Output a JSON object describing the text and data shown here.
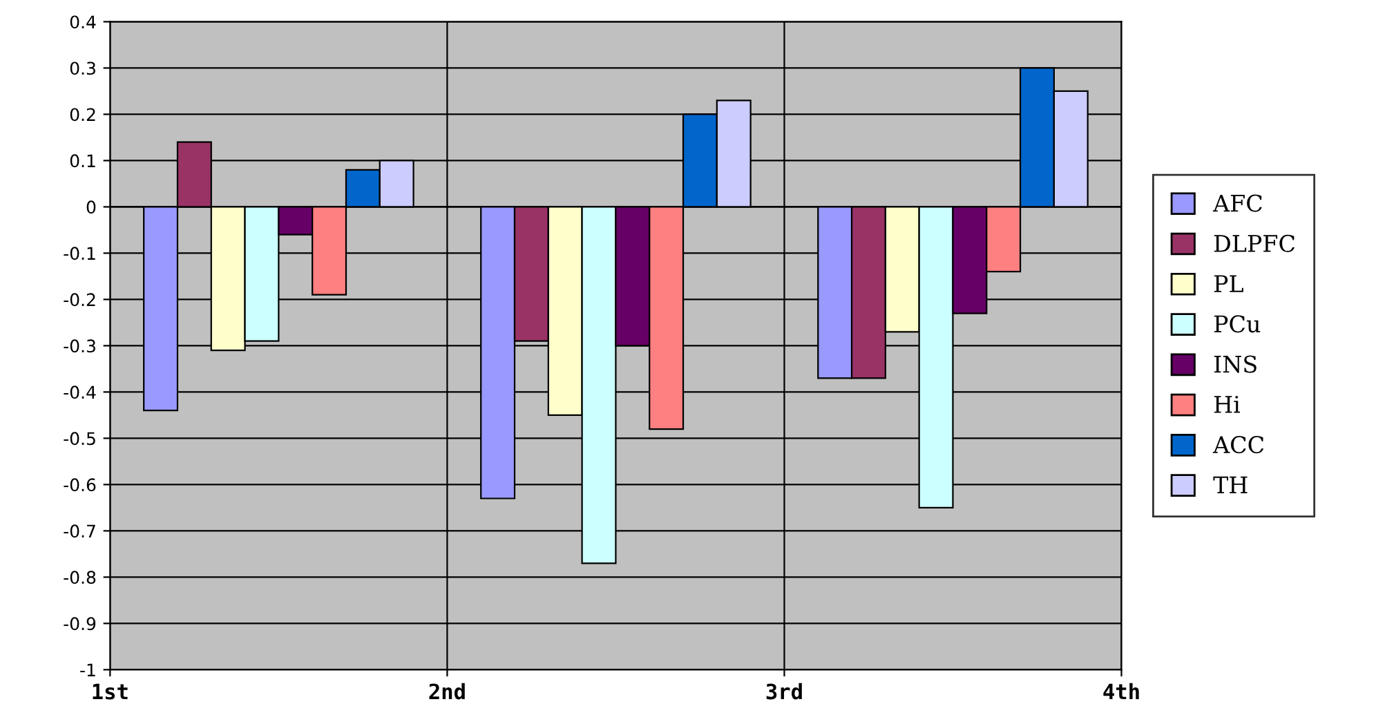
{
  "chart_data": {
    "type": "bar",
    "x": [
      1.5,
      2.5,
      3.5
    ],
    "xlim": [
      1,
      4
    ],
    "xticks": [
      {
        "value": 1,
        "label": "1st"
      },
      {
        "value": 2,
        "label": "2nd"
      },
      {
        "value": 3,
        "label": "3rd"
      },
      {
        "value": 4,
        "label": "4th"
      }
    ],
    "ylim": [
      -1,
      0.4
    ],
    "yticks": [
      -1,
      -0.9,
      -0.8,
      -0.7,
      -0.6,
      -0.5,
      -0.4,
      -0.3,
      -0.2,
      -0.1,
      0,
      0.1,
      0.2,
      0.3,
      0.4
    ],
    "grid": true,
    "legend": "right",
    "series": [
      {
        "name": "AFC",
        "color": "#9999ff",
        "values": [
          -0.44,
          -0.63,
          -0.37
        ]
      },
      {
        "name": "DLPFC",
        "color": "#993366",
        "values": [
          0.14,
          -0.29,
          -0.37
        ]
      },
      {
        "name": "PL",
        "color": "#ffffcc",
        "values": [
          -0.31,
          -0.45,
          -0.27
        ]
      },
      {
        "name": "PCu",
        "color": "#ccffff",
        "values": [
          -0.29,
          -0.77,
          -0.65
        ]
      },
      {
        "name": "INS",
        "color": "#660066",
        "values": [
          -0.06,
          -0.3,
          -0.23
        ]
      },
      {
        "name": "Hi",
        "color": "#ff8080",
        "values": [
          -0.19,
          -0.48,
          -0.14
        ]
      },
      {
        "name": "ACC",
        "color": "#0066cc",
        "values": [
          0.08,
          0.2,
          0.3
        ]
      },
      {
        "name": "TH",
        "color": "#ccccff",
        "values": [
          0.1,
          0.23,
          0.25
        ]
      }
    ]
  }
}
